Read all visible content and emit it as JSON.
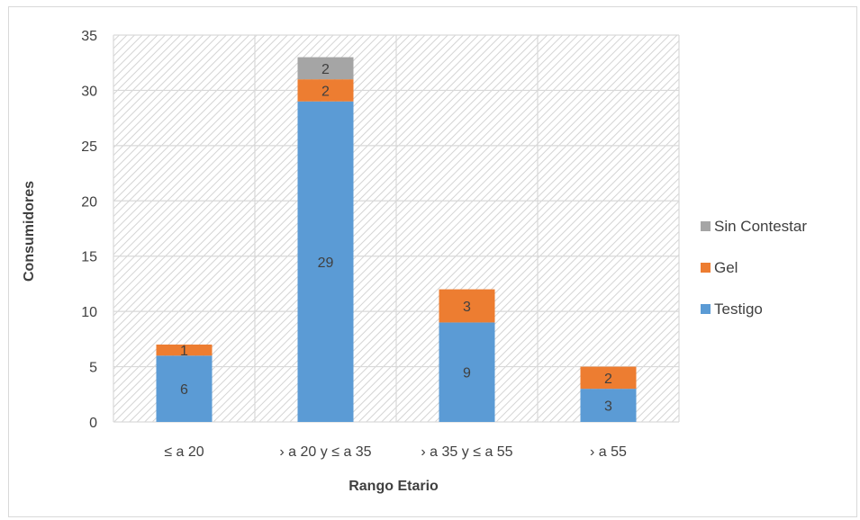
{
  "chart_data": {
    "type": "bar",
    "stacked": true,
    "title": "",
    "xlabel": "Rango Etario",
    "ylabel": "Consumidores",
    "ylim": [
      0,
      35
    ],
    "yticks": [
      0,
      5,
      10,
      15,
      20,
      25,
      30,
      35
    ],
    "categories": [
      "≤ a 20",
      "› a 20 y ≤ a 35",
      "› a 35 y ≤ a 55",
      "› a 55"
    ],
    "series": [
      {
        "name": "Testigo",
        "color": "#5b9bd5",
        "values": [
          6,
          29,
          9,
          3
        ]
      },
      {
        "name": "Gel",
        "color": "#ed7d31",
        "values": [
          1,
          2,
          3,
          2
        ]
      },
      {
        "name": "Sin Contestar",
        "color": "#a5a5a5",
        "values": [
          0,
          2,
          0,
          0
        ]
      }
    ],
    "legend": {
      "position": "right",
      "order": [
        "Sin Contestar",
        "Gel",
        "Testigo"
      ]
    },
    "grid": true,
    "plot_background": "diagonal-hatch"
  }
}
